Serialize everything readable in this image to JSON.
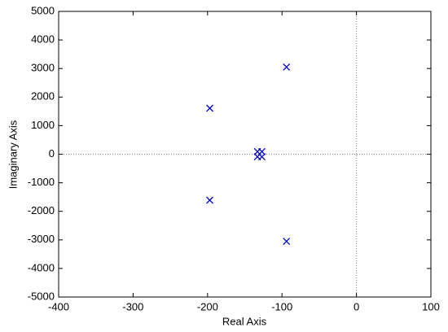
{
  "chart_data": {
    "type": "scatter",
    "xlabel": "Real Axis",
    "ylabel": "Imaginary Axis",
    "series": [
      {
        "color": "#0000cc",
        "marker": "x",
        "x": [
          -94,
          -94,
          -197,
          -197,
          -133,
          -127,
          -133,
          -127
        ],
        "values": [
          3050,
          -3050,
          1610,
          -1610,
          90,
          90,
          -90,
          -90
        ]
      }
    ],
    "xlim": [
      -400,
      100
    ],
    "xticks": [
      -400,
      -300,
      -200,
      -100,
      0,
      100
    ],
    "ylim": [
      -5000,
      5000
    ],
    "yticks": [
      -5000,
      -4000,
      -3000,
      -2000,
      -1000,
      0,
      1000,
      2000,
      3000,
      4000,
      5000
    ],
    "grid": false
  }
}
